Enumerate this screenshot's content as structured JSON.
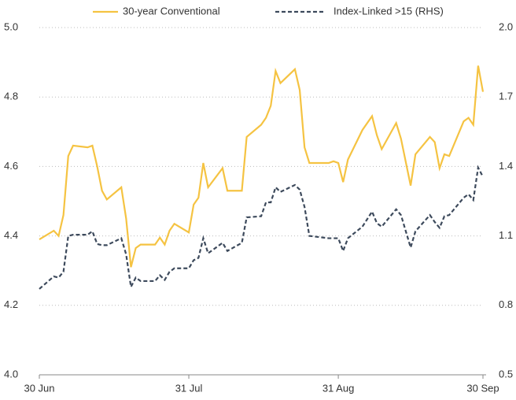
{
  "chart_data": {
    "type": "line",
    "x": [
      0,
      3,
      4,
      5,
      6,
      7,
      10,
      11,
      12,
      13,
      14,
      17,
      18,
      19,
      20,
      21,
      24,
      25,
      26,
      27,
      28,
      31,
      32,
      33,
      34,
      35,
      38,
      39,
      42,
      43,
      46,
      47,
      48,
      49,
      50,
      53,
      54,
      55,
      56,
      60,
      61,
      62,
      63,
      64,
      67,
      69,
      70,
      71,
      74,
      75,
      77,
      78,
      81,
      82,
      83,
      84,
      85,
      88,
      89,
      90,
      91,
      92
    ],
    "series": [
      {
        "name": "30-year Conventional",
        "color": "#f5c342",
        "axis": "y",
        "values": [
          4.39,
          4.415,
          4.4,
          4.46,
          4.63,
          4.66,
          4.655,
          4.66,
          4.6,
          4.53,
          4.505,
          4.54,
          4.45,
          4.31,
          4.365,
          4.375,
          4.375,
          4.395,
          4.375,
          4.415,
          4.435,
          4.41,
          4.49,
          4.51,
          4.61,
          4.54,
          4.595,
          4.53,
          4.53,
          4.685,
          4.72,
          4.74,
          4.775,
          4.875,
          4.84,
          4.88,
          4.82,
          4.655,
          4.61,
          4.61,
          4.615,
          4.61,
          4.555,
          4.62,
          4.705,
          4.745,
          4.69,
          4.65,
          4.725,
          4.68,
          4.545,
          4.635,
          4.685,
          4.67,
          4.595,
          4.635,
          4.63,
          4.73,
          4.74,
          4.72,
          4.89,
          4.815
        ]
      },
      {
        "name": "Index-Linked >15 (RHS)",
        "color": "#3d4a5c",
        "axis": "y2",
        "dashed": true,
        "values": [
          0.871,
          0.925,
          0.92,
          0.945,
          1.1,
          1.105,
          1.105,
          1.12,
          1.065,
          1.06,
          1.06,
          1.09,
          1.02,
          0.88,
          0.92,
          0.905,
          0.905,
          0.93,
          0.91,
          0.945,
          0.96,
          0.96,
          0.995,
          1.005,
          1.09,
          1.025,
          1.07,
          1.035,
          1.07,
          1.18,
          1.185,
          1.245,
          1.245,
          1.31,
          1.29,
          1.32,
          1.3,
          1.225,
          1.1,
          1.09,
          1.09,
          1.09,
          1.035,
          1.09,
          1.14,
          1.205,
          1.155,
          1.14,
          1.215,
          1.19,
          1.05,
          1.12,
          1.19,
          1.16,
          1.135,
          1.185,
          1.19,
          1.265,
          1.28,
          1.255,
          1.395,
          1.355
        ]
      }
    ],
    "xlim": [
      0,
      92
    ],
    "xticks": [
      {
        "value": 0,
        "label": "30 Jun"
      },
      {
        "value": 31,
        "label": "31 Jul"
      },
      {
        "value": 62,
        "label": "31 Aug"
      },
      {
        "value": 92,
        "label": "30 Sep"
      }
    ],
    "ylim": [
      4.0,
      5.0
    ],
    "yticks": [
      {
        "value": 4.0,
        "label": "4.0"
      },
      4.2,
      4.4,
      4.6,
      4.8,
      {
        "value": 5.0,
        "label": "5.0"
      }
    ],
    "y2lim": [
      0.5,
      2.0
    ],
    "y2ticks": [
      0.5,
      0.8,
      1.1,
      1.4,
      1.7,
      {
        "value": 2.0,
        "label": "2.0"
      }
    ],
    "grid": true
  }
}
